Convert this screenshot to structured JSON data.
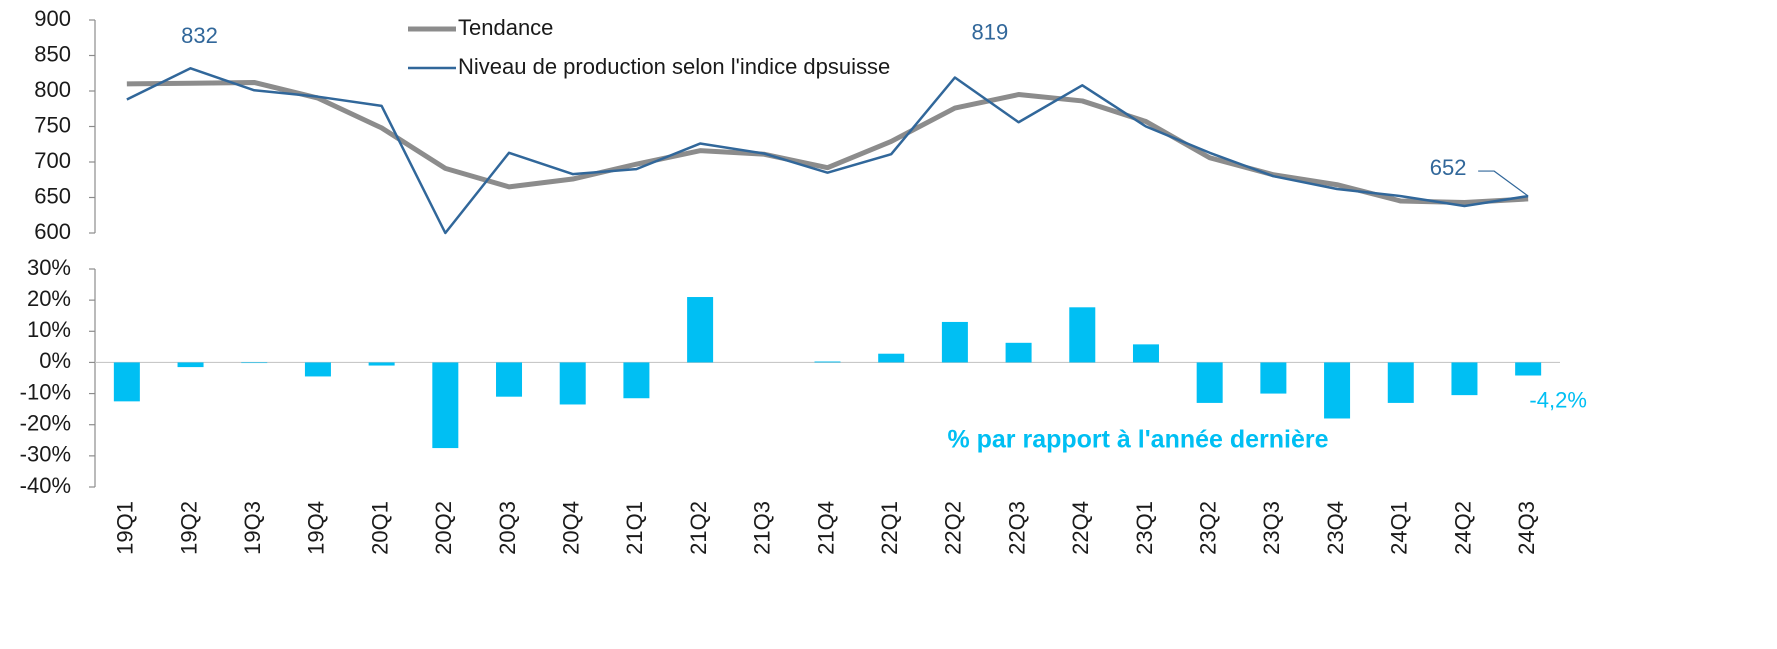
{
  "chart_data": [
    {
      "type": "line",
      "ylim": [
        600,
        900
      ],
      "yticks": [
        600,
        650,
        700,
        750,
        800,
        850,
        900
      ],
      "legend": "top",
      "series": [
        {
          "name": "Tendance",
          "color": "#8c8c8c",
          "values": [
            810,
            811,
            812,
            790,
            748,
            691,
            665,
            676,
            697,
            716,
            711,
            692,
            729,
            776,
            795,
            786,
            757,
            706,
            682,
            668,
            645,
            643,
            648
          ]
        },
        {
          "name": "Niveau de production selon l'indice dpsuisse",
          "color": "#31679a",
          "values": [
            788,
            832,
            801,
            792,
            779,
            600,
            713,
            683,
            690,
            726,
            712,
            685,
            711,
            819,
            756,
            808,
            750,
            713,
            680,
            662,
            652,
            638,
            652
          ],
          "value_labels": [
            null,
            "832",
            null,
            null,
            null,
            null,
            null,
            null,
            null,
            null,
            null,
            null,
            null,
            "819",
            null,
            null,
            null,
            null,
            null,
            null,
            null,
            null,
            "652"
          ]
        }
      ]
    },
    {
      "type": "bar",
      "categories": [
        "19Q1",
        "19Q2",
        "19Q3",
        "19Q4",
        "20Q1",
        "20Q2",
        "20Q3",
        "20Q4",
        "21Q1",
        "21Q2",
        "21Q3",
        "21Q4",
        "22Q1",
        "22Q2",
        "22Q3",
        "22Q4",
        "23Q1",
        "23Q2",
        "23Q3",
        "23Q4",
        "24Q1",
        "24Q2",
        "24Q3"
      ],
      "ylim": [
        -40,
        30
      ],
      "yticks": [
        {
          "value": -40,
          "label": "-40%"
        },
        {
          "value": -30,
          "label": "-30%"
        },
        {
          "value": -20,
          "label": "-20%"
        },
        {
          "value": -10,
          "label": "-10%"
        },
        {
          "value": 0,
          "label": "0%"
        },
        {
          "value": 10,
          "label": "10%"
        },
        {
          "value": 20,
          "label": "20%"
        },
        {
          "value": 30,
          "label": "30%"
        }
      ],
      "series": [
        {
          "name": "% par rapport à l'année dernière",
          "color": "#00bff3",
          "values": [
            -12.5,
            -1.5,
            -0.2,
            -4.5,
            -1,
            -27.5,
            -11,
            -13.5,
            -11.5,
            21,
            0,
            0.3,
            2.8,
            13,
            6.3,
            17.7,
            5.8,
            -13,
            -10,
            -18,
            -13,
            -10.5,
            -4.2
          ],
          "value_labels": [
            null,
            null,
            null,
            null,
            null,
            null,
            null,
            null,
            null,
            null,
            null,
            null,
            null,
            null,
            null,
            null,
            null,
            null,
            null,
            null,
            null,
            null,
            "-4,2%"
          ]
        }
      ]
    }
  ]
}
